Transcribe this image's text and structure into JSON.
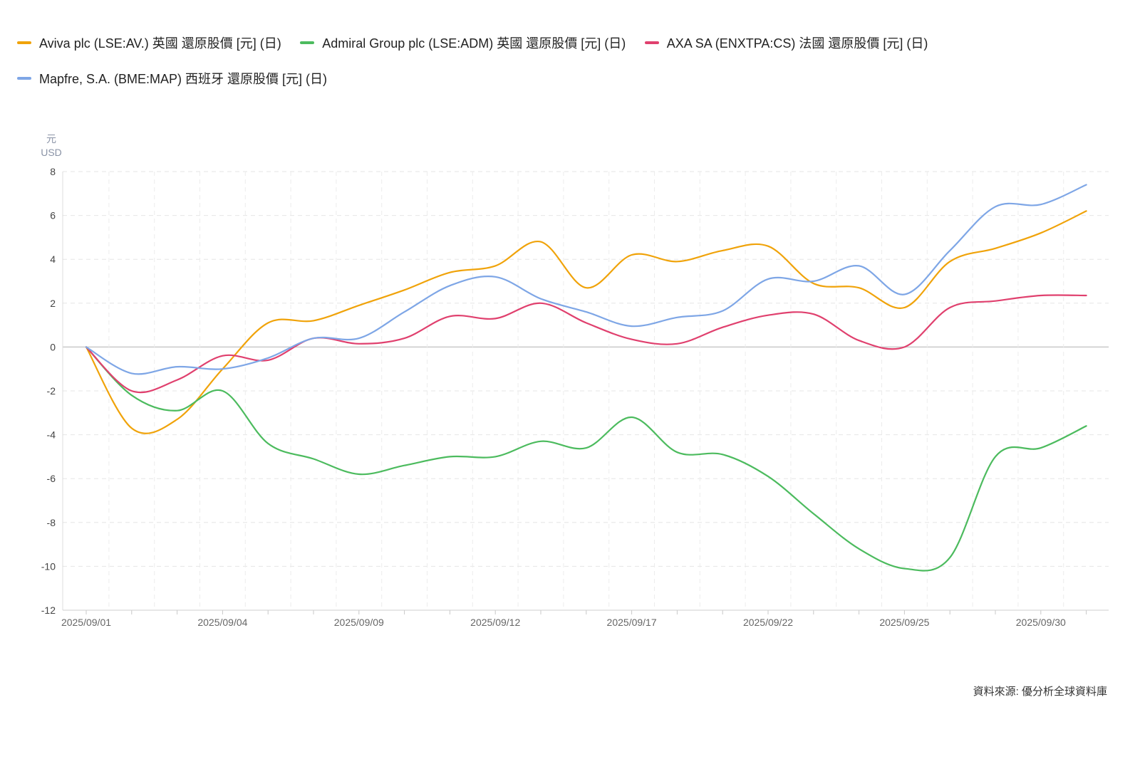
{
  "chart_data": {
    "type": "line",
    "unit_top": "元",
    "unit_bottom": "USD",
    "ylim": [
      -12,
      8
    ],
    "yticks": [
      8,
      6,
      4,
      2,
      0,
      -2,
      -4,
      -6,
      -8,
      -10,
      -12
    ],
    "x_labels": [
      {
        "label": "2025/09/01",
        "index": 0
      },
      {
        "label": "2025/09/04",
        "index": 3
      },
      {
        "label": "2025/09/09",
        "index": 6
      },
      {
        "label": "2025/09/12",
        "index": 9
      },
      {
        "label": "2025/09/17",
        "index": 12
      },
      {
        "label": "2025/09/22",
        "index": 15
      },
      {
        "label": "2025/09/25",
        "index": 18
      },
      {
        "label": "2025/09/30",
        "index": 21
      }
    ],
    "grid": true,
    "legend_position": "top-left",
    "series": [
      {
        "name": "Aviva plc (LSE:AV.) 英國 還原股價 [元] (日)",
        "color": "#F0A30A",
        "values": [
          0,
          -3.7,
          -3.3,
          -1.0,
          1.1,
          1.2,
          1.9,
          2.6,
          3.4,
          3.7,
          4.8,
          2.7,
          4.2,
          3.9,
          4.4,
          4.6,
          2.9,
          2.7,
          1.8,
          3.9,
          4.5,
          5.2,
          6.2
        ]
      },
      {
        "name": "Admiral Group plc (LSE:ADM) 英國 還原股價 [元] (日)",
        "color": "#4CBB5E",
        "values": [
          0,
          -2.2,
          -2.9,
          -2.0,
          -4.4,
          -5.1,
          -5.8,
          -5.4,
          -5.0,
          -5.0,
          -4.3,
          -4.6,
          -3.2,
          -4.8,
          -4.9,
          -5.9,
          -7.6,
          -9.2,
          -10.1,
          -9.6,
          -5.0,
          -4.6,
          -3.6
        ]
      },
      {
        "name": "AXA SA (ENXTPA:CS) 法國 還原股價 [元] (日)",
        "color": "#E0406E",
        "values": [
          0,
          -2.0,
          -1.5,
          -0.4,
          -0.6,
          0.4,
          0.15,
          0.4,
          1.4,
          1.3,
          2.0,
          1.1,
          0.35,
          0.15,
          0.9,
          1.45,
          1.5,
          0.3,
          0.0,
          1.8,
          2.1,
          2.35,
          2.35
        ]
      },
      {
        "name": "Mapfre, S.A. (BME:MAP) 西班牙 還原股價 [元] (日)",
        "color": "#7EA6E6",
        "values": [
          0,
          -1.2,
          -0.9,
          -1.0,
          -0.5,
          0.4,
          0.4,
          1.6,
          2.8,
          3.2,
          2.2,
          1.6,
          0.95,
          1.35,
          1.65,
          3.1,
          3.0,
          3.7,
          2.4,
          4.4,
          6.4,
          6.5,
          7.4
        ]
      }
    ],
    "source": "資料來源: 優分析全球資料庫"
  }
}
